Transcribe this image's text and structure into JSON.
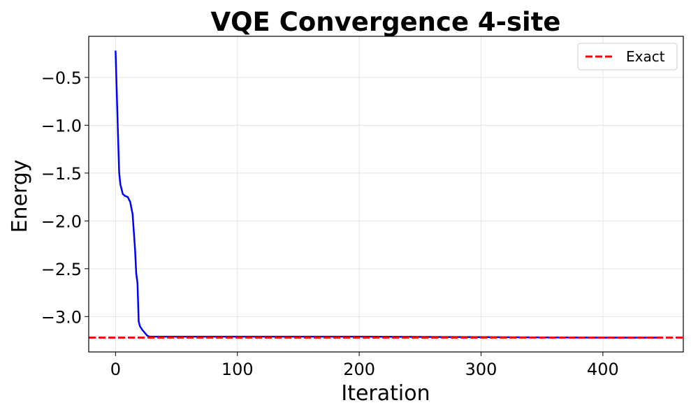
{
  "chart_data": {
    "type": "line",
    "title": "VQE Convergence 4-site",
    "xlabel": "Iteration",
    "ylabel": "Energy",
    "xlim": [
      -22,
      466
    ],
    "ylim": [
      -3.37,
      -0.07
    ],
    "x_ticks": [
      0,
      100,
      200,
      300,
      400
    ],
    "y_ticks": [
      -3.0,
      -2.5,
      -2.0,
      -1.5,
      -1.0,
      -0.5
    ],
    "x_tick_labels": [
      "0",
      "100",
      "200",
      "300",
      "400"
    ],
    "y_tick_labels": [
      "−3.0",
      "−2.5",
      "−2.0",
      "−1.5",
      "−1.0",
      "−0.5"
    ],
    "grid": true,
    "legend_position": "upper-right",
    "series": [
      {
        "color": "#0000ff",
        "style": "solid",
        "x": [
          0,
          1,
          2,
          3,
          4,
          5,
          6,
          8,
          10,
          12,
          14,
          16,
          17,
          18,
          19,
          20,
          21,
          22,
          24,
          26,
          28,
          30,
          35,
          50,
          100,
          200,
          300,
          400,
          445
        ],
        "y": [
          -0.22,
          -0.65,
          -1.1,
          -1.5,
          -1.62,
          -1.67,
          -1.72,
          -1.74,
          -1.75,
          -1.8,
          -1.93,
          -2.3,
          -2.55,
          -2.65,
          -3.05,
          -3.1,
          -3.12,
          -3.14,
          -3.17,
          -3.2,
          -3.21,
          -3.21,
          -3.21,
          -3.21,
          -3.21,
          -3.21,
          -3.215,
          -3.22,
          -3.22
        ]
      },
      {
        "name": "Exact",
        "color": "#ff0000",
        "style": "dashed",
        "y_const": -3.22
      }
    ]
  }
}
